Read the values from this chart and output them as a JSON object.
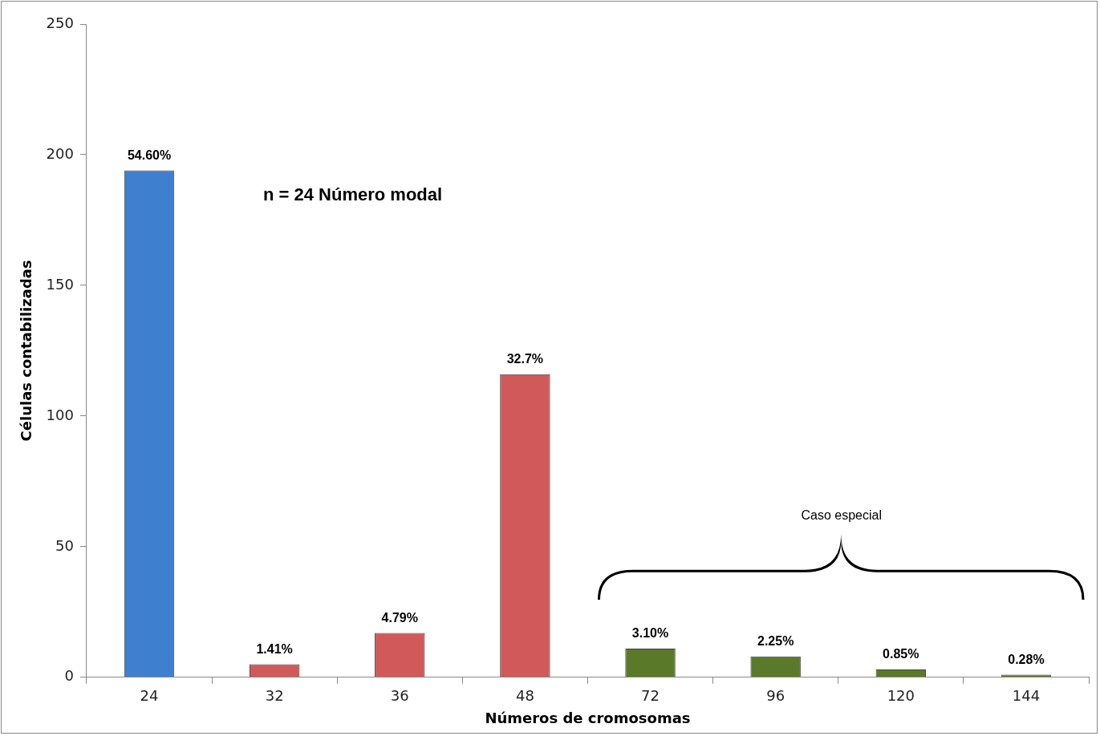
{
  "chart_data": {
    "type": "bar",
    "xlabel": "Números de cromosomas",
    "ylabel": "Células contabilizadas",
    "categories": [
      "24",
      "32",
      "36",
      "48",
      "72",
      "96",
      "120",
      "144"
    ],
    "values": [
      194,
      5,
      17,
      116,
      11,
      8,
      3,
      1
    ],
    "colors": [
      "#3f7fd0",
      "#d05a5a",
      "#d05a5a",
      "#d05a5a",
      "#5a7a2a",
      "#5a7a2a",
      "#5a7a2a",
      "#5a7a2a"
    ],
    "ylim": [
      0,
      250
    ],
    "yticks": [
      0,
      50,
      100,
      150,
      200,
      250
    ],
    "grid": false,
    "legend": false,
    "annotations": [
      "n = 24 Número modal",
      "Caso especial",
      {
        "text": "54.60%",
        "x": "24",
        "y": 194
      },
      {
        "text": "1.41%",
        "x": "32",
        "y": 5
      },
      {
        "text": "4.79%",
        "x": "36",
        "y": 17
      },
      {
        "text": "32.7%",
        "x": "48",
        "y": 116
      },
      {
        "text": "3.10%",
        "x": "72",
        "y": 11
      },
      {
        "text": "2.25%",
        "x": "96",
        "y": 8
      },
      {
        "text": "0.85%",
        "x": "120",
        "y": 3
      },
      {
        "text": "0.28%",
        "x": "144",
        "y": 1
      }
    ]
  }
}
